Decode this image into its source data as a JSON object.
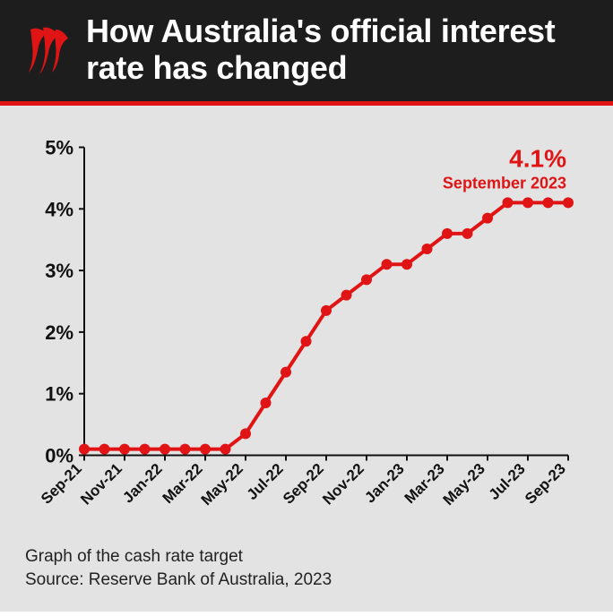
{
  "header": {
    "title": "How Australia's official interest rate has changed",
    "background_color": "#1d1d1d",
    "accent_bar_color": "#e01414",
    "logo_color": "#e01414"
  },
  "chart": {
    "type": "line",
    "background_color": "#e3e3e3",
    "line_color": "#e01414",
    "line_width": 4,
    "marker_radius": 6,
    "marker_fill": "#e01414",
    "axis_color": "#111111",
    "axis_width": 2,
    "grid": false,
    "ylim": [
      0,
      5
    ],
    "yticks": [
      0,
      1,
      2,
      3,
      4,
      5
    ],
    "ytick_suffix": "%",
    "y_label_fontsize": 22,
    "x_label_fontsize": 17,
    "x_label_rotation_deg": -45,
    "xticks": [
      "Sep-21",
      "Nov-21",
      "Jan-22",
      "Mar-22",
      "May-22",
      "Jul-22",
      "Sep-22",
      "Nov-22",
      "Jan-23",
      "Mar-23",
      "May-23",
      "Jul-23",
      "Sep-23"
    ],
    "series": {
      "labels": [
        "Sep-21",
        "Oct-21",
        "Nov-21",
        "Dec-21",
        "Jan-22",
        "Feb-22",
        "Mar-22",
        "Apr-22",
        "May-22",
        "Jun-22",
        "Jul-22",
        "Aug-22",
        "Sep-22",
        "Oct-22",
        "Nov-22",
        "Dec-22",
        "Jan-23",
        "Feb-23",
        "Mar-23",
        "Apr-23",
        "May-23",
        "Jun-23",
        "Jul-23",
        "Aug-23",
        "Sep-23"
      ],
      "values": [
        0.1,
        0.1,
        0.1,
        0.1,
        0.1,
        0.1,
        0.1,
        0.1,
        0.35,
        0.85,
        1.35,
        1.85,
        2.35,
        2.6,
        2.85,
        3.1,
        3.1,
        3.35,
        3.6,
        3.6,
        3.85,
        4.1,
        4.1,
        4.1,
        4.1
      ]
    },
    "annotation": {
      "value_text": "4.1%",
      "date_text": "September 2023",
      "color": "#e01414",
      "value_fontsize": 28,
      "date_fontsize": 18
    }
  },
  "footer": {
    "subtitle": "Graph of the cash rate target",
    "source": "Source: Reserve Bank of Australia, 2023",
    "fontsize": 19,
    "color": "#222222"
  }
}
